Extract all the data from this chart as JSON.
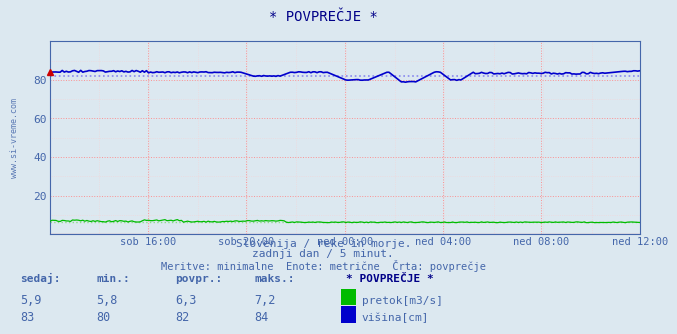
{
  "title": "* POVPREČJE *",
  "background_color": "#dce8f0",
  "plot_bg_color": "#dce8f0",
  "grid_major_color": "#ff8888",
  "grid_minor_color": "#ffcccc",
  "ylim": [
    0,
    100
  ],
  "yticks": [
    20,
    40,
    60,
    80
  ],
  "xlabel_times": [
    "sob 16:00",
    "sob 20:00",
    "ned 00:00",
    "ned 04:00",
    "ned 08:00",
    "ned 12:00"
  ],
  "n_points": 288,
  "pretok_color": "#00bb00",
  "visina_color": "#0000cc",
  "avg_pretok_color": "#88dd88",
  "avg_visina_color": "#8888ee",
  "title_color": "#000088",
  "axis_color": "#4466aa",
  "tick_color": "#4466aa",
  "watermark": "www.si-vreme.com",
  "subtitle1": "Slovenija / reke in morje.",
  "subtitle2": "zadnji dan / 5 minut.",
  "subtitle3": "Meritve: minimalne  Enote: metrične  Črta: povprečje",
  "legend_title": "* POVPREČJE *",
  "legend_items": [
    {
      "label": "pretok[m3/s]",
      "color": "#00bb00"
    },
    {
      "label": "višina[cm]",
      "color": "#0000cc"
    }
  ],
  "stats_headers": [
    "sedaj:",
    "min.:",
    "povpr.:",
    "maks.:"
  ],
  "stats_pretok": [
    "5,9",
    "5,8",
    "6,3",
    "7,2"
  ],
  "stats_visina": [
    "83",
    "80",
    "82",
    "84"
  ],
  "arrow_color": "#cc0000",
  "avg_visina": 82,
  "avg_pretok": 6.3,
  "visina_base": 84,
  "pretok_base": 6.3
}
